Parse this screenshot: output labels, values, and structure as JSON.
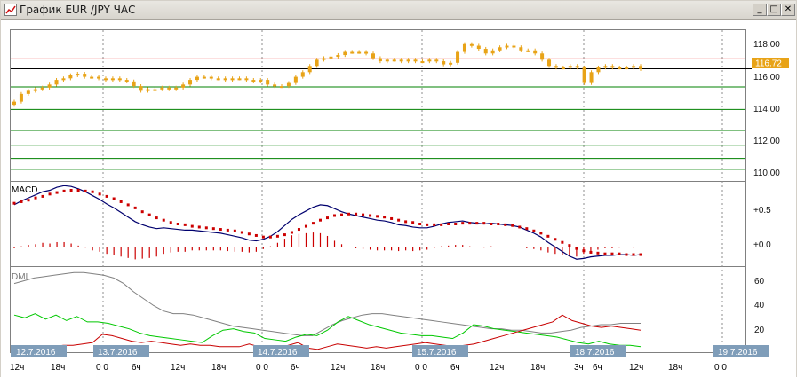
{
  "window": {
    "title": "График EUR /JPY  ЧАС",
    "buttons": {
      "minimize": "_",
      "maximize": "□",
      "close": "✕"
    },
    "icon": "chart-app-icon"
  },
  "price_panel": {
    "y_ticks": [
      "118.00",
      "116.00",
      "114.00",
      "112.00",
      "110.00"
    ],
    "current_price": "116.72"
  },
  "macd_panel": {
    "title": "MACD",
    "y_ticks": [
      "+0.5",
      "+0.0"
    ]
  },
  "dmi_panel": {
    "title": "DMI",
    "y_ticks": [
      "60",
      "40",
      "20"
    ]
  },
  "x_axis": {
    "ticks": [
      "12ч",
      "18ч",
      "0 0",
      "6ч",
      "12ч",
      "18ч",
      "0 0",
      "6ч",
      "12ч",
      "18ч",
      "0 0",
      "6ч",
      "12ч",
      "18ч",
      "3ч",
      "6ч",
      "12ч",
      "18ч",
      "0 0"
    ],
    "date_tags": [
      "12.7.2016",
      "13.7.2016",
      "14.7.2016",
      "15.7.2016",
      "18.7.2016",
      "19.7.2016"
    ]
  },
  "colors": {
    "candles": "#e8a317",
    "red_line": "#e60000",
    "green_line": "#008000",
    "black_line": "#000000",
    "macd_line": "#00006e",
    "signal_dots": "#cc0000",
    "histogram": "#cc0000",
    "dmi_adx": "#808080",
    "dmi_plus": "#00c800",
    "dmi_minus": "#c80000",
    "price_tag_bg": "#e8a317",
    "date_tag_bg": "#7f9db9"
  },
  "chart_data": [
    {
      "type": "candlestick",
      "title": "",
      "ylim": [
        109.5,
        119.2
      ],
      "y_ticks": [
        118,
        116,
        114,
        112,
        110
      ],
      "horizontal_levels": {
        "red": 117.35,
        "black": 116.72,
        "green": [
          115.55,
          114.1,
          112.75,
          111.8,
          110.95,
          110.25
        ]
      },
      "close": [
        114.6,
        115.1,
        115.3,
        115.4,
        115.5,
        115.7,
        116.0,
        116.1,
        116.3,
        116.4,
        116.2,
        116.2,
        116.1,
        116.0,
        116.1,
        116.0,
        115.9,
        115.6,
        115.3,
        115.4,
        115.4,
        115.5,
        115.4,
        115.5,
        115.7,
        116.0,
        116.2,
        116.2,
        116.1,
        116.1,
        116.0,
        116.1,
        116.1,
        116.0,
        115.9,
        116.0,
        115.7,
        115.6,
        115.6,
        115.8,
        116.2,
        116.5,
        116.9,
        117.3,
        117.4,
        117.5,
        117.6,
        117.8,
        117.8,
        117.8,
        117.7,
        117.4,
        117.2,
        117.3,
        117.3,
        117.2,
        117.3,
        117.2,
        117.2,
        117.3,
        117.2,
        117.0,
        117.1,
        117.8,
        118.3,
        118.2,
        118.0,
        117.7,
        117.9,
        118.1,
        118.2,
        118.1,
        117.9,
        117.9,
        117.7,
        117.3,
        116.9,
        116.8,
        116.8,
        116.9,
        116.8,
        115.8,
        116.5,
        116.8,
        116.9,
        116.8,
        116.8,
        116.8,
        116.9,
        116.7
      ]
    },
    {
      "type": "line",
      "title": "MACD",
      "ylim": [
        -0.25,
        0.85
      ],
      "y_ticks": [
        0.5,
        0.0
      ],
      "series": [
        {
          "values": [
            0.55,
            0.6,
            0.64,
            0.68,
            0.72,
            0.74,
            0.78,
            0.8,
            0.79,
            0.76,
            0.72,
            0.67,
            0.62,
            0.56,
            0.51,
            0.45,
            0.39,
            0.33,
            0.29,
            0.26,
            0.24,
            0.25,
            0.24,
            0.23,
            0.22,
            0.22,
            0.21,
            0.2,
            0.19,
            0.18,
            0.16,
            0.14,
            0.12,
            0.09,
            0.08,
            0.1,
            0.14,
            0.2,
            0.28,
            0.36,
            0.42,
            0.47,
            0.52,
            0.55,
            0.54,
            0.5,
            0.46,
            0.43,
            0.41,
            0.39,
            0.37,
            0.35,
            0.34,
            0.32,
            0.29,
            0.28,
            0.26,
            0.25,
            0.25,
            0.27,
            0.3,
            0.32,
            0.33,
            0.34,
            0.32,
            0.31,
            0.3,
            0.31,
            0.3,
            0.29,
            0.28,
            0.26,
            0.22,
            0.18,
            0.13,
            0.06,
            0.0,
            -0.06,
            -0.12,
            -0.16,
            -0.15,
            -0.13,
            -0.12,
            -0.11,
            -0.11,
            -0.1,
            -0.1,
            -0.11,
            -0.1
          ]
        },
        {
          "values": [
            0.57,
            0.59,
            0.61,
            0.64,
            0.66,
            0.69,
            0.71,
            0.73,
            0.74,
            0.74,
            0.73,
            0.72,
            0.69,
            0.66,
            0.63,
            0.59,
            0.55,
            0.51,
            0.46,
            0.42,
            0.38,
            0.35,
            0.32,
            0.3,
            0.29,
            0.27,
            0.26,
            0.25,
            0.24,
            0.23,
            0.22,
            0.21,
            0.19,
            0.17,
            0.15,
            0.13,
            0.13,
            0.14,
            0.16,
            0.19,
            0.23,
            0.27,
            0.31,
            0.35,
            0.38,
            0.41,
            0.42,
            0.43,
            0.43,
            0.42,
            0.41,
            0.4,
            0.39,
            0.37,
            0.35,
            0.33,
            0.32,
            0.3,
            0.29,
            0.29,
            0.29,
            0.3,
            0.3,
            0.31,
            0.31,
            0.31,
            0.31,
            0.3,
            0.3,
            0.29,
            0.28,
            0.26,
            0.24,
            0.21,
            0.18,
            0.14,
            0.1,
            0.06,
            0.02,
            -0.02,
            -0.05,
            -0.07,
            -0.08,
            -0.09,
            -0.09,
            -0.09,
            -0.1,
            -0.1,
            -0.1
          ]
        }
      ]
    },
    {
      "type": "line",
      "title": "DMI",
      "ylim": [
        8,
        70
      ],
      "y_ticks": [
        60,
        40,
        20
      ],
      "series": [
        {
          "values": [
            58,
            60,
            62,
            63,
            64,
            65,
            66,
            66,
            65,
            64,
            62,
            58,
            52,
            47,
            42,
            38,
            36,
            36,
            35,
            33,
            31,
            29,
            27,
            26,
            25,
            24,
            23,
            22,
            21,
            20,
            20,
            24,
            28,
            31,
            33,
            35,
            36,
            36,
            35,
            34,
            33,
            32,
            31,
            30,
            29,
            28,
            27,
            26,
            25,
            25,
            24,
            24,
            23,
            22,
            22,
            23,
            24,
            26,
            27,
            28,
            28,
            29,
            29,
            29
          ]
        },
        {
          "values": [
            35,
            33,
            36,
            32,
            35,
            31,
            34,
            30,
            30,
            29,
            27,
            25,
            22,
            20,
            19,
            18,
            17,
            16,
            15,
            20,
            24,
            25,
            23,
            22,
            18,
            17,
            16,
            19,
            21,
            20,
            24,
            30,
            34,
            31,
            28,
            26,
            24,
            22,
            21,
            20,
            20,
            19,
            18,
            22,
            28,
            27,
            25,
            24,
            23,
            22,
            21,
            20,
            19,
            17,
            15,
            14,
            16,
            14,
            13,
            13,
            12
          ]
        },
        {
          "values": [
            10,
            9,
            10,
            11,
            12,
            13,
            13,
            14,
            15,
            21,
            20,
            18,
            16,
            15,
            16,
            15,
            14,
            13,
            14,
            13,
            13,
            12,
            12,
            12,
            14,
            12,
            12,
            11,
            13,
            15,
            11,
            10,
            12,
            14,
            13,
            12,
            11,
            12,
            11,
            12,
            13,
            14,
            15,
            14,
            13,
            12,
            13,
            14,
            16,
            18,
            20,
            22,
            24,
            26,
            28,
            30,
            35,
            31,
            29,
            27,
            26,
            27,
            26,
            25,
            24
          ]
        }
      ]
    }
  ]
}
